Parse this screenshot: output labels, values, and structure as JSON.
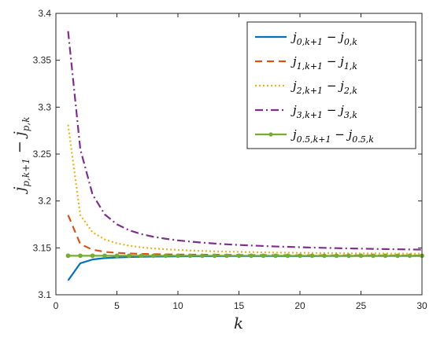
{
  "chart_data": {
    "type": "line",
    "xlabel": "k",
    "ylabel": "j_{p,k+1} − j_{p,k}",
    "xlim": [
      0,
      30
    ],
    "ylim": [
      3.1,
      3.4
    ],
    "x_ticks": [
      "0",
      "5",
      "10",
      "15",
      "20",
      "25",
      "30"
    ],
    "y_ticks": [
      "3.1",
      "3.15",
      "3.2",
      "3.25",
      "3.3",
      "3.35",
      "3.4"
    ],
    "grid": false,
    "legend_position": "top-right",
    "x": [
      1,
      2,
      3,
      4,
      5,
      6,
      7,
      8,
      9,
      10,
      11,
      12,
      13,
      14,
      15,
      16,
      17,
      18,
      19,
      20,
      21,
      22,
      23,
      24,
      25,
      26,
      27,
      28,
      29,
      30
    ],
    "series": [
      {
        "name": "j_{0,k+1} − j_{0,k}",
        "color": "#0072BD",
        "style": "solid",
        "values": [
          3.1153,
          3.1336,
          3.1376,
          3.1391,
          3.1398,
          3.1402,
          3.1405,
          3.1407,
          3.1408,
          3.1409,
          3.141,
          3.1411,
          3.1411,
          3.1412,
          3.1412,
          3.1412,
          3.1413,
          3.1413,
          3.1413,
          3.1413,
          3.1413,
          3.1414,
          3.1414,
          3.1414,
          3.1414,
          3.1414,
          3.1414,
          3.1414,
          3.1414,
          3.1414
        ]
      },
      {
        "name": "j_{1,k+1} − j_{1,k}",
        "color": "#D95319",
        "style": "dashed",
        "values": [
          3.1849,
          3.1541,
          3.148,
          3.1458,
          3.1447,
          3.144,
          3.1436,
          3.1433,
          3.1431,
          3.1429,
          3.1428,
          3.1427,
          3.1426,
          3.1425,
          3.1424,
          3.1423,
          3.1423,
          3.1422,
          3.1422,
          3.1421,
          3.1421,
          3.1421,
          3.142,
          3.142,
          3.142,
          3.142,
          3.1419,
          3.1419,
          3.1419,
          3.1419
        ]
      },
      {
        "name": "j_{2,k+1} − j_{2,k}",
        "color": "#EDB120",
        "style": "dotted",
        "values": [
          3.2812,
          3.185,
          3.1666,
          3.159,
          3.1549,
          3.1523,
          3.1506,
          3.1494,
          3.1485,
          3.1478,
          3.1472,
          3.1467,
          3.1463,
          3.146,
          3.1457,
          3.1455,
          3.1452,
          3.145,
          3.1449,
          3.1447,
          3.1446,
          3.1445,
          3.1443,
          3.1442,
          3.1441,
          3.1441,
          3.144,
          3.1439,
          3.1438,
          3.1438
        ]
      },
      {
        "name": "j_{3,k+1} − j_{3,k}",
        "color": "#7E2F8E",
        "style": "dashdot",
        "values": [
          3.381,
          3.2553,
          3.207,
          3.1857,
          3.1751,
          3.1688,
          3.1647,
          3.1618,
          3.1597,
          3.158,
          3.1567,
          3.1556,
          3.1546,
          3.1538,
          3.1531,
          3.1525,
          3.152,
          3.1515,
          3.1511,
          3.1507,
          3.1503,
          3.15,
          3.1497,
          3.1494,
          3.1492,
          3.1489,
          3.1487,
          3.1485,
          3.1483,
          3.1481
        ]
      },
      {
        "name": "j_{0.5,k+1} − j_{0.5,k}",
        "color": "#77AC30",
        "style": "solid-marker",
        "values": [
          3.1416,
          3.1416,
          3.1416,
          3.1416,
          3.1416,
          3.1416,
          3.1416,
          3.1416,
          3.1416,
          3.1416,
          3.1416,
          3.1416,
          3.1416,
          3.1416,
          3.1416,
          3.1416,
          3.1416,
          3.1416,
          3.1416,
          3.1416,
          3.1416,
          3.1416,
          3.1416,
          3.1416,
          3.1416,
          3.1416,
          3.1416,
          3.1416,
          3.1416,
          3.1416
        ]
      }
    ]
  }
}
